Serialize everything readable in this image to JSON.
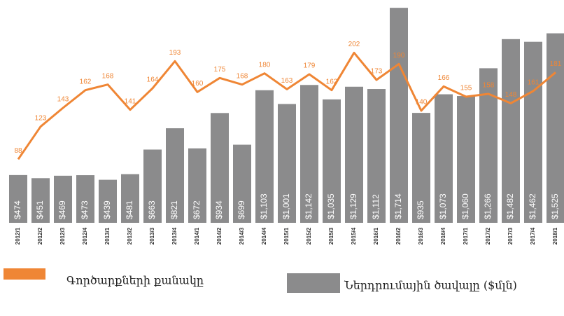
{
  "chart_data": {
    "type": "bar",
    "categories": [
      "2012/1",
      "2012/2",
      "2012/3",
      "2012/4",
      "2013/1",
      "2013/2",
      "2013/3",
      "2013/4",
      "2014/1",
      "2014/2",
      "2014/3",
      "2014/4",
      "2015/1",
      "2015/2",
      "2015/3",
      "2015/4",
      "2016/1",
      "2016/2",
      "2016/3",
      "2016/4",
      "2017/1",
      "2017/2",
      "2017/3",
      "2017/4",
      "2018/1"
    ],
    "series": [
      {
        "name": "Ներդրումային ծավալը ($մլն)",
        "color": "#8b8b8c",
        "values": [
          474,
          451,
          469,
          473,
          439,
          481,
          663,
          821,
          672,
          934,
          699,
          1103,
          1001,
          1142,
          1035,
          1129,
          1112,
          1714,
          935,
          1073,
          1060,
          1266,
          1482,
          1462,
          1525
        ],
        "value_labels": [
          "$474",
          "$451",
          "$469",
          "$473",
          "$439",
          "$481",
          "$663",
          "$821",
          "$672",
          "$934",
          "$699",
          "$1,103",
          "$1,001",
          "$1,142",
          "$1,035",
          "$1,129",
          "$1,112",
          "$1,714",
          "$935",
          "$1,073",
          "$1,060",
          "$1,266",
          "$1,482",
          "$1,462",
          "$1,525"
        ]
      },
      {
        "name": "Գործարքների քանակը",
        "color": "#ef8635",
        "type": "line",
        "axis": "y2",
        "values": [
          88,
          123,
          143,
          162,
          168,
          141,
          164,
          193,
          160,
          175,
          168,
          180,
          163,
          179,
          162,
          202,
          173,
          190,
          140,
          166,
          155,
          158,
          148,
          161,
          181
        ]
      }
    ],
    "ylim": [
      120,
      1720
    ],
    "y2lim": [
      20,
      251
    ]
  }
}
